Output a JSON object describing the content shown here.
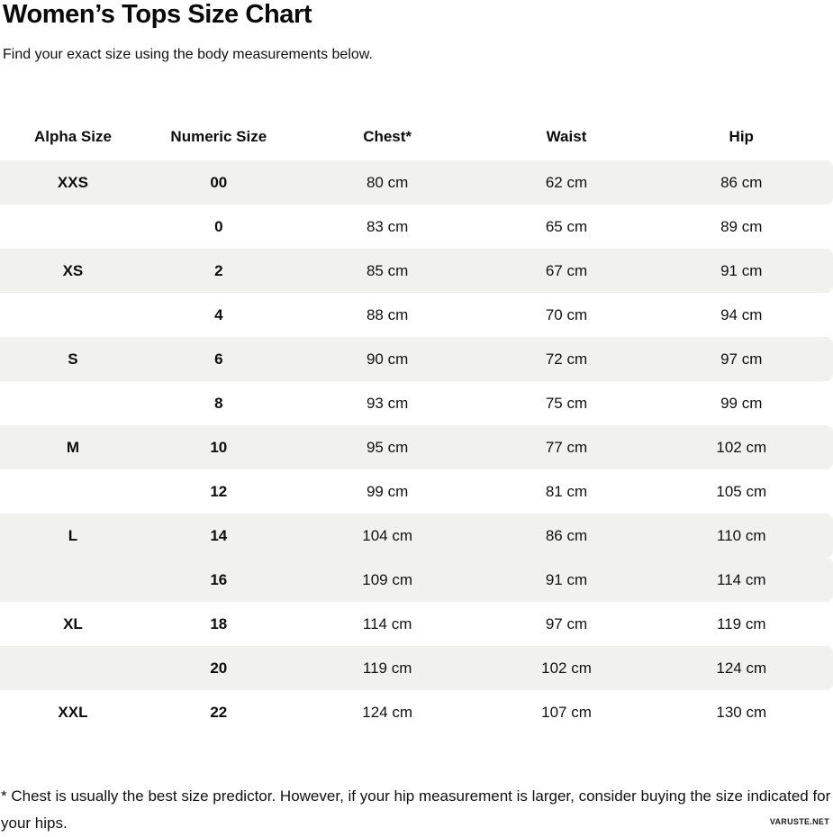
{
  "page": {
    "title": "Women’s Tops Size Chart",
    "subtitle": "Find your exact size using the body measurements below.",
    "footnote": "* Chest is usually the best size predictor. However, if your hip measurement is larger, consider buying the size indicated for your hips.",
    "watermark": "VARUSTE.NET"
  },
  "colors": {
    "row_shade": "#f1f1ef",
    "text": "#111111",
    "background": "#ffffff"
  },
  "table": {
    "columns": [
      "Alpha Size",
      "Numeric Size",
      "Chest*",
      "Waist",
      "Hip"
    ],
    "rows": [
      {
        "alpha": "XXS",
        "numeric": "00",
        "chest": "80 cm",
        "waist": "62 cm",
        "hip": "86 cm",
        "shaded": true
      },
      {
        "alpha": "",
        "numeric": "0",
        "chest": "83 cm",
        "waist": "65 cm",
        "hip": "89 cm",
        "shaded": false
      },
      {
        "alpha": "XS",
        "numeric": "2",
        "chest": "85 cm",
        "waist": "67 cm",
        "hip": "91 cm",
        "shaded": true
      },
      {
        "alpha": "",
        "numeric": "4",
        "chest": "88 cm",
        "waist": "70 cm",
        "hip": "94 cm",
        "shaded": false
      },
      {
        "alpha": "S",
        "numeric": "6",
        "chest": "90 cm",
        "waist": "72 cm",
        "hip": "97 cm",
        "shaded": true
      },
      {
        "alpha": "",
        "numeric": "8",
        "chest": "93 cm",
        "waist": "75 cm",
        "hip": "99 cm",
        "shaded": false
      },
      {
        "alpha": "M",
        "numeric": "10",
        "chest": "95 cm",
        "waist": "77 cm",
        "hip": "102 cm",
        "shaded": true
      },
      {
        "alpha": "",
        "numeric": "12",
        "chest": "99 cm",
        "waist": "81 cm",
        "hip": "105 cm",
        "shaded": false
      },
      {
        "alpha": "L",
        "numeric": "14",
        "chest": "104 cm",
        "waist": "86 cm",
        "hip": "110 cm",
        "shaded": true
      },
      {
        "alpha": "",
        "numeric": "16",
        "chest": "109 cm",
        "waist": "91 cm",
        "hip": "114 cm",
        "shaded": true
      },
      {
        "alpha": "XL",
        "numeric": "18",
        "chest": "114 cm",
        "waist": "97 cm",
        "hip": "119 cm",
        "shaded": false
      },
      {
        "alpha": "",
        "numeric": "20",
        "chest": "119 cm",
        "waist": "102 cm",
        "hip": "124 cm",
        "shaded": true
      },
      {
        "alpha": "XXL",
        "numeric": "22",
        "chest": "124 cm",
        "waist": "107 cm",
        "hip": "130 cm",
        "shaded": false
      }
    ]
  }
}
